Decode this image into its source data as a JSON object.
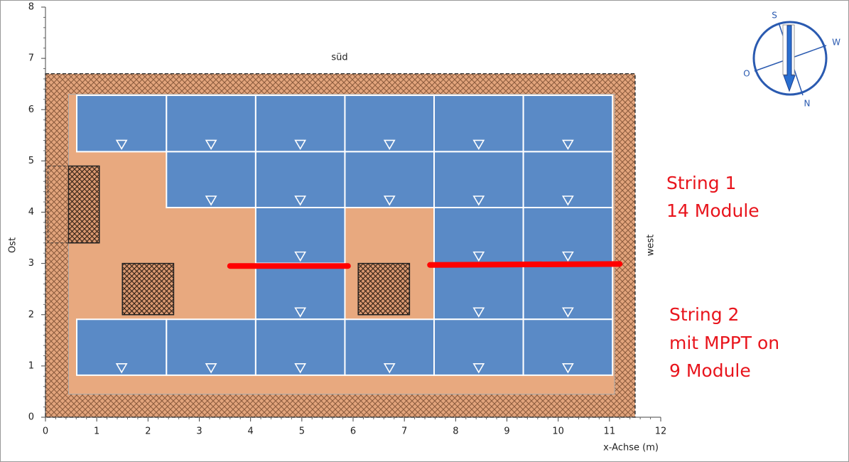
{
  "plot": {
    "top_label": "süd",
    "left_label": "Ost",
    "right_label": "west",
    "x_label": "x-Achse (m)",
    "xlim": [
      0,
      12
    ],
    "ylim": [
      0,
      8
    ],
    "xticks": [
      0,
      1,
      2,
      3,
      4,
      5,
      6,
      7,
      8,
      9,
      10,
      11,
      12
    ],
    "yticks": [
      0,
      1,
      2,
      3,
      4,
      5,
      6,
      7,
      8
    ],
    "roof_outer": [
      0,
      0,
      11.5,
      6.7
    ],
    "roof_inner": [
      0.45,
      0.45,
      11.1,
      6.3
    ],
    "keepout": [
      0.05,
      3.4,
      1.05,
      4.9
    ],
    "obstacles": [
      [
        0.45,
        3.4,
        1.05,
        4.9
      ],
      [
        1.5,
        2.0,
        2.5,
        3.0
      ],
      [
        6.1,
        2.0,
        7.1,
        3.0
      ]
    ],
    "modules": [
      [
        0.61,
        5.18,
        2.36,
        6.28
      ],
      [
        2.36,
        5.18,
        4.1,
        6.28
      ],
      [
        4.1,
        5.18,
        5.84,
        6.28
      ],
      [
        5.84,
        5.18,
        7.58,
        6.28
      ],
      [
        7.58,
        5.18,
        9.32,
        6.28
      ],
      [
        9.32,
        5.18,
        11.06,
        6.28
      ],
      [
        2.36,
        4.09,
        4.1,
        5.18
      ],
      [
        4.1,
        4.09,
        5.84,
        5.18
      ],
      [
        5.84,
        4.09,
        7.58,
        5.18
      ],
      [
        7.58,
        4.09,
        9.32,
        5.18
      ],
      [
        9.32,
        4.09,
        11.06,
        5.18
      ],
      [
        4.1,
        3.0,
        5.84,
        4.09
      ],
      [
        7.58,
        3.0,
        9.32,
        4.09
      ],
      [
        9.32,
        3.0,
        11.06,
        4.09
      ],
      [
        4.1,
        1.91,
        5.84,
        3.0
      ],
      [
        7.58,
        1.91,
        9.32,
        3.0
      ],
      [
        9.32,
        1.91,
        11.06,
        3.0
      ],
      [
        0.61,
        0.82,
        2.36,
        1.91
      ],
      [
        2.36,
        0.82,
        4.1,
        1.91
      ],
      [
        4.1,
        0.82,
        5.84,
        1.91
      ],
      [
        5.84,
        0.82,
        7.58,
        1.91
      ],
      [
        7.58,
        0.82,
        9.32,
        1.91
      ],
      [
        9.32,
        0.82,
        11.06,
        1.91
      ]
    ],
    "cables": [
      [
        3.6,
        2.95,
        5.9,
        2.95
      ],
      [
        7.5,
        2.97,
        11.2,
        2.99
      ]
    ]
  },
  "annotations": {
    "string1": [
      "String 1",
      "14 Module"
    ],
    "string2": [
      "String 2",
      "mit MPPT on",
      "9 Module"
    ]
  },
  "compass": {
    "s": "S",
    "w": "W",
    "o": "O",
    "n": "N"
  }
}
